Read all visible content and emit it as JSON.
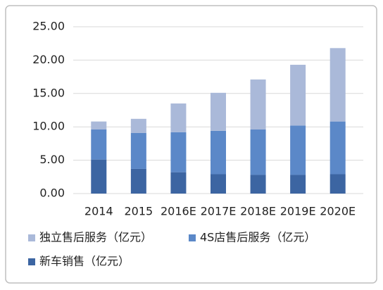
{
  "chart_data": {
    "type": "stacked_bar",
    "categories": [
      "2014",
      "2015",
      "2016E",
      "2017E",
      "2018E",
      "2019E",
      "2020E"
    ],
    "series": [
      {
        "name": "新车销售（亿元）",
        "color": "#3c65a2",
        "values": [
          5.1,
          3.7,
          3.2,
          2.9,
          2.8,
          2.8,
          2.9
        ]
      },
      {
        "name": "4S店售后服务（亿元）",
        "color": "#5b88c8",
        "values": [
          4.5,
          5.4,
          6.0,
          6.5,
          6.8,
          7.4,
          7.9
        ]
      },
      {
        "name": "独立售后服务（亿元）",
        "color": "#aab9d9",
        "values": [
          1.2,
          2.1,
          4.3,
          5.7,
          7.5,
          9.1,
          11.0
        ]
      }
    ],
    "ylim": [
      0,
      25
    ],
    "yticks": [
      {
        "value": 0,
        "label": "0.00"
      },
      {
        "value": 5,
        "label": "5.00"
      },
      {
        "value": 10,
        "label": "10.00"
      },
      {
        "value": 15,
        "label": "15.00"
      },
      {
        "value": 20,
        "label": "20.00"
      },
      {
        "value": 25,
        "label": "25.00"
      }
    ],
    "grid": true
  }
}
